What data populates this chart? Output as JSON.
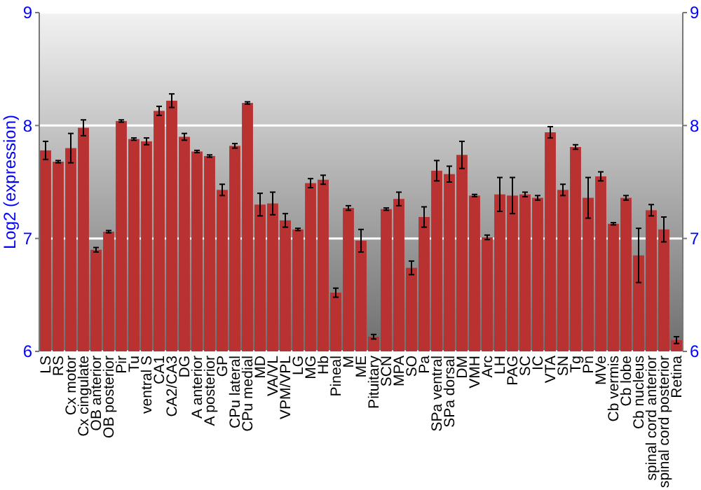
{
  "chart_data": {
    "type": "bar",
    "ylabel": "Log2 (expression)",
    "categories": [
      "LS",
      "RS",
      "Cx motor",
      "Cx cingulate",
      "OB anterior",
      "OB posterior",
      "Pir",
      "Tu",
      "ventral S",
      "CA1",
      "CA2/CA3",
      "DG",
      "A anterior",
      "A posterior",
      "GP",
      "CPu lateral",
      "CPu medial",
      "MD",
      "VA/VL",
      "VPM/VPL",
      "LG",
      "MG",
      "Hb",
      "Pineal",
      "M",
      "ME",
      "Pituitary",
      "SCN",
      "MPA",
      "SO",
      "Pa",
      "SPa ventral",
      "SPa dorsal",
      "DM",
      "VMH",
      "Arc",
      "LH",
      "PAG",
      "SC",
      "IC",
      "VTA",
      "SN",
      "Tg",
      "Pn",
      "MVe",
      "Cb vermis",
      "Cb lobe",
      "Cb nucleus",
      "spinal cord anterior",
      "spinal cord posterior",
      "Retina"
    ],
    "values": [
      7.78,
      7.68,
      7.8,
      7.98,
      6.9,
      7.06,
      8.04,
      7.88,
      7.86,
      8.13,
      8.22,
      7.9,
      7.77,
      7.73,
      7.43,
      7.82,
      8.2,
      7.3,
      7.31,
      7.16,
      7.08,
      7.49,
      7.52,
      6.52,
      7.27,
      6.98,
      6.13,
      7.26,
      7.35,
      6.74,
      7.19,
      7.6,
      7.57,
      7.74,
      7.38,
      7.01,
      7.39,
      7.38,
      7.39,
      7.36,
      7.94,
      7.43,
      7.81,
      7.36,
      7.55,
      7.13,
      7.36,
      6.85,
      7.25,
      7.08,
      6.1
    ],
    "errors": [
      0.08,
      0.01,
      0.13,
      0.07,
      0.02,
      0.01,
      0.01,
      0.01,
      0.03,
      0.04,
      0.06,
      0.03,
      0.01,
      0.01,
      0.05,
      0.02,
      0.01,
      0.1,
      0.1,
      0.06,
      0.01,
      0.04,
      0.04,
      0.04,
      0.02,
      0.1,
      0.02,
      0.01,
      0.06,
      0.06,
      0.09,
      0.09,
      0.07,
      0.12,
      0.01,
      0.02,
      0.15,
      0.16,
      0.02,
      0.02,
      0.05,
      0.05,
      0.02,
      0.18,
      0.04,
      0.01,
      0.02,
      0.24,
      0.05,
      0.11,
      0.03
    ],
    "color": "#b83232",
    "ylim": [
      6,
      9
    ],
    "yticks": [
      6,
      7,
      8,
      9
    ],
    "y2lim": [
      6,
      9
    ],
    "y2ticks": [
      6,
      7,
      8,
      9
    ],
    "grid": "y"
  }
}
